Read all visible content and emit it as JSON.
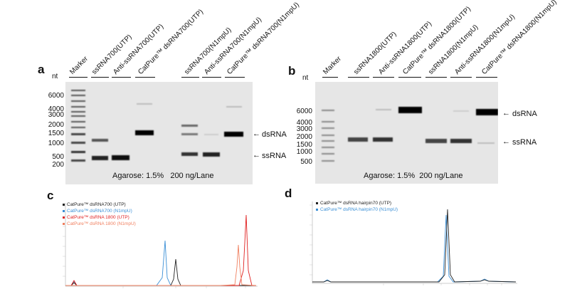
{
  "panel_a": {
    "label": "a",
    "nt": "nt",
    "lanes": [
      "Marker",
      "ssRNA700(UTP)",
      "Anti-ssRNA700(UTP)",
      "CatPure™ dsRNA700(UTP)",
      "ssRNA700(N1mpU)",
      "Anti-ssRNA700(N1mpU)",
      "CatPure™ dsRNA700(N1mpU)"
    ],
    "ladder": [
      "6000",
      "4000",
      "3000",
      "2000",
      "1500",
      "1000",
      "500",
      "200"
    ],
    "band_labels": [
      "dsRNA",
      "ssRNA"
    ],
    "footer": "Agarose: 1.5%   200 ng/Lane"
  },
  "panel_b": {
    "label": "b",
    "nt": "nt",
    "lanes": [
      "Marker",
      "ssRNA1800(UTP)",
      "Anti-ssRNA1800(UTP)",
      "CatPure™ dsRNA1800(UTP)",
      "ssRNA1800(N1mpU)",
      "Anti-ssRNA1800(N1mpU)",
      "CatPure™ dsRNA1800(N1mpU)"
    ],
    "ladder": [
      "6000",
      "4000",
      "3000",
      "2000",
      "1500",
      "1000",
      "500"
    ],
    "band_labels": [
      "dsRNA",
      "ssRNA"
    ],
    "footer": "Agarose: 1.5%  200 ng/Lane"
  },
  "panel_c": {
    "label": "c",
    "legend": [
      {
        "text": "CatPure™ dsRNA700 (UTP)",
        "color": "#222222"
      },
      {
        "text": "CatPure™ dsRNA700 (N1mpU)",
        "color": "#3a8fd6"
      },
      {
        "text": "CatPure™ dsRNA 1800 (UTP)",
        "color": "#e02020"
      },
      {
        "text": "CatPure™ dsRNA 1800 (N1mpU)",
        "color": "#f08060"
      }
    ]
  },
  "panel_d": {
    "label": "d",
    "legend": [
      {
        "text": "CatPure™ dsRNA hairpin70 (UTP)",
        "color": "#222222"
      },
      {
        "text": "CatPure™ dsRNA hairpin70 (N1mpU)",
        "color": "#3a8fd6"
      }
    ]
  }
}
